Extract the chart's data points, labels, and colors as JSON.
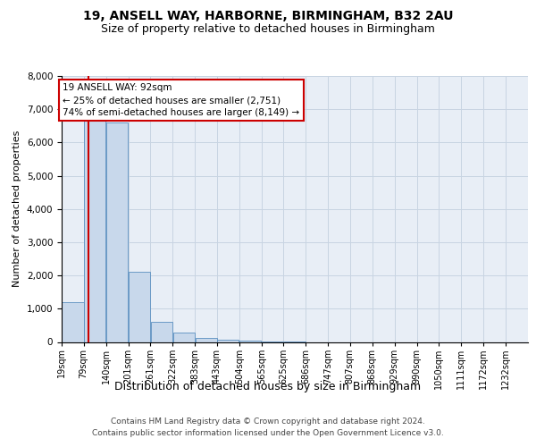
{
  "title1": "19, ANSELL WAY, HARBORNE, BIRMINGHAM, B32 2AU",
  "title2": "Size of property relative to detached houses in Birmingham",
  "xlabel": "Distribution of detached houses by size in Birmingham",
  "ylabel": "Number of detached properties",
  "footer1": "Contains HM Land Registry data © Crown copyright and database right 2024.",
  "footer2": "Contains public sector information licensed under the Open Government Licence v3.0.",
  "annotation_title": "19 ANSELL WAY: 92sqm",
  "annotation_line2": "← 25% of detached houses are smaller (2,751)",
  "annotation_line3": "74% of semi-detached houses are larger (8,149) →",
  "property_size_sqm": 92,
  "bar_color": "#c8d8eb",
  "bar_edge_color": "#5a8fc0",
  "vline_color": "#cc0000",
  "annotation_box_edge": "#cc0000",
  "grid_color": "#c8d4e2",
  "background_color": "#e8eef6",
  "categories": [
    "19sqm",
    "79sqm",
    "140sqm",
    "201sqm",
    "261sqm",
    "322sqm",
    "383sqm",
    "443sqm",
    "504sqm",
    "565sqm",
    "625sqm",
    "686sqm",
    "747sqm",
    "807sqm",
    "868sqm",
    "929sqm",
    "990sqm",
    "1050sqm",
    "1111sqm",
    "1172sqm",
    "1232sqm"
  ],
  "values": [
    1200,
    6700,
    6600,
    2100,
    600,
    270,
    130,
    80,
    40,
    10,
    5,
    0,
    0,
    0,
    0,
    0,
    0,
    0,
    0,
    0,
    0
  ],
  "bin_edges": [
    19,
    79,
    140,
    201,
    261,
    322,
    383,
    443,
    504,
    565,
    625,
    686,
    747,
    807,
    868,
    929,
    990,
    1050,
    1111,
    1172,
    1232
  ],
  "bin_width": 61,
  "ylim": [
    0,
    8000
  ],
  "yticks": [
    0,
    1000,
    2000,
    3000,
    4000,
    5000,
    6000,
    7000,
    8000
  ]
}
